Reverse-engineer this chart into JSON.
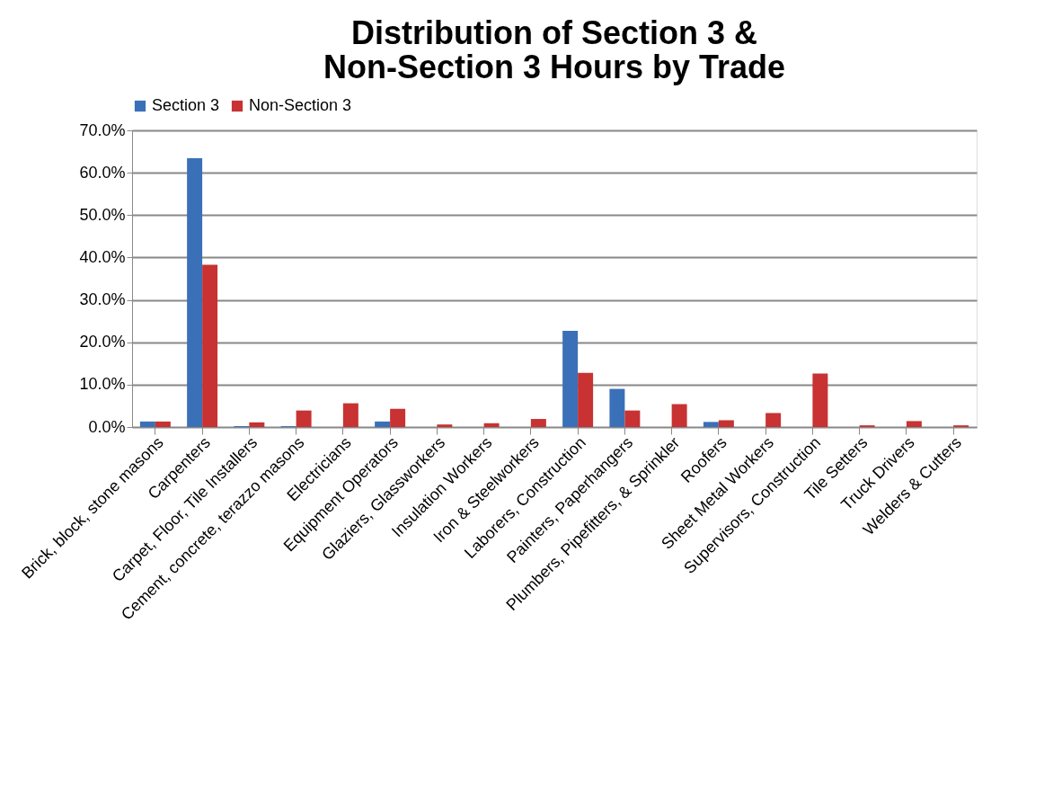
{
  "chart_data": {
    "type": "bar",
    "title": "Distribution of Section 3 & Non-Section 3 Hours by Trade",
    "categories": [
      "Brick, block, stone masons",
      "Carpenters",
      "Carpet, Floor, Tile Installers",
      "Cement, concrete, terazzo masons",
      "Electricians",
      "Equipment Operators",
      "Glaziers, Glassworkers",
      "Insulation Workers",
      "Iron & Steelworkers",
      "Laborers, Construction",
      "Painters, Paperhangers",
      "Plumbers, Pipefitters, & Sprinkler",
      "Roofers",
      "Sheet Metal Workers",
      "Supervisors, Construction",
      "Tile Setters",
      "Truck Drivers",
      "Welders & Cutters"
    ],
    "series": [
      {
        "name": "Section 3",
        "color": "#3a70b8",
        "values": [
          1.3,
          63.4,
          0.2,
          0.2,
          0,
          1.3,
          0,
          0,
          0,
          22.7,
          9.0,
          0,
          1.2,
          0,
          0,
          0,
          0,
          0
        ]
      },
      {
        "name": "Non-Section 3",
        "color": "#c83232",
        "values": [
          1.3,
          38.3,
          1.1,
          3.9,
          5.6,
          4.3,
          0.6,
          0.9,
          1.9,
          12.8,
          3.9,
          5.4,
          1.6,
          3.3,
          12.6,
          0.4,
          1.4,
          0.4
        ]
      }
    ],
    "ylim": [
      0,
      70
    ],
    "yticks": [
      {
        "value": 0,
        "label": "0.0%"
      },
      {
        "value": 10,
        "label": "10.0%"
      },
      {
        "value": 20,
        "label": "20.0%"
      },
      {
        "value": 30,
        "label": "30.0%"
      },
      {
        "value": 40,
        "label": "40.0%"
      },
      {
        "value": 50,
        "label": "50.0%"
      },
      {
        "value": 60,
        "label": "60.0%"
      },
      {
        "value": 70,
        "label": "70.0%"
      }
    ],
    "grid": "y",
    "legend": "top"
  }
}
